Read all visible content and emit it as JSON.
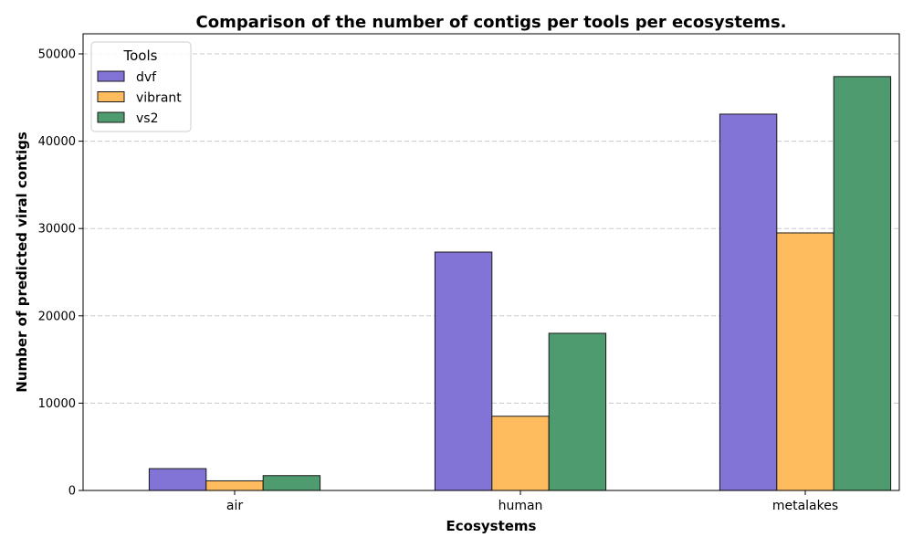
{
  "chart_data": {
    "type": "bar",
    "title": "Comparison of the number of contigs per tools per ecosystems.",
    "xlabel": "Ecosystems",
    "ylabel": "Number of predicted viral contigs",
    "categories": [
      "air",
      "human",
      "metalakes"
    ],
    "series": [
      {
        "name": "dvf",
        "values": [
          2500,
          27300,
          43100
        ],
        "color": "#8174d6"
      },
      {
        "name": "vibrant",
        "values": [
          1100,
          8500,
          29500
        ],
        "color": "#ffbc5e"
      },
      {
        "name": "vs2",
        "values": [
          1700,
          18000,
          47400
        ],
        "color": "#4d9b6e"
      }
    ],
    "ylim": [
      0,
      52300
    ],
    "yticks": [
      0,
      10000,
      20000,
      30000,
      40000,
      50000
    ],
    "grid": true,
    "legend": {
      "title": "Tools",
      "placement": "top-left"
    }
  }
}
